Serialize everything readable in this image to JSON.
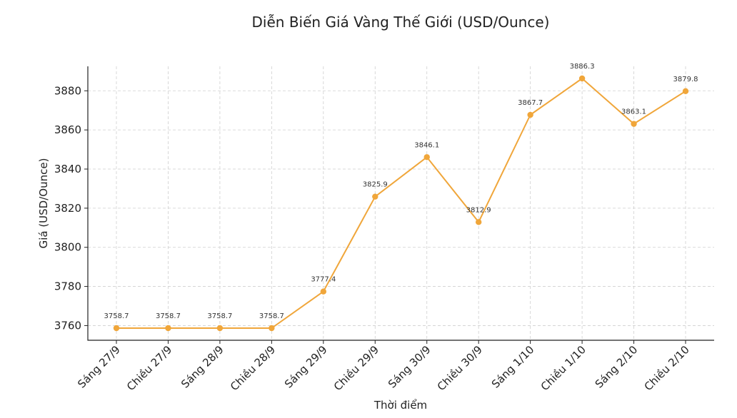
{
  "chart_data": {
    "type": "line",
    "title": "Diễn Biến Giá Vàng Thế Giới (USD/Ounce)",
    "xlabel": "Thời điểm",
    "ylabel": "Giá (USD/Ounce)",
    "categories": [
      "Sáng 27/9",
      "Chiều 27/9",
      "Sáng 28/9",
      "Chiều 28/9",
      "Sáng 29/9",
      "Chiều 29/9",
      "Sáng 30/9",
      "Chiều 30/9",
      "Sáng 1/10",
      "Chiều 1/10",
      "Sáng 2/10",
      "Chiều 2/10"
    ],
    "series": [
      {
        "values": [
          3758.7,
          3758.7,
          3758.7,
          3758.7,
          3777.4,
          3825.9,
          3846.1,
          3812.9,
          3867.7,
          3886.3,
          3863.1,
          3879.8
        ],
        "labels": [
          "3758.7",
          "3758.7",
          "3758.7",
          "3758.7",
          "3777.4",
          "3825.9",
          "3846.1",
          "3812.9",
          "3867.7",
          "3886.3",
          "3863.1",
          "3879.8"
        ],
        "color": "#f0a63a"
      }
    ],
    "yticks": [
      3760,
      3780,
      3800,
      3820,
      3840,
      3860,
      3880
    ],
    "ylim": [
      3752.5,
      3892.5
    ],
    "grid": true
  }
}
